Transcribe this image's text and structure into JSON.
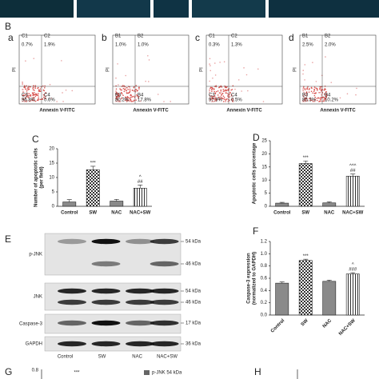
{
  "letters": {
    "B": "B",
    "C": "C",
    "D": "D",
    "E": "E",
    "F": "F",
    "G": "G",
    "H": "H"
  },
  "flow": {
    "x_label": "Annexin V-FITC",
    "y_label": "PI",
    "panels": [
      {
        "letter": "a",
        "quadrants": [
          "C1",
          "C2",
          "C3",
          "C4"
        ],
        "percents": [
          "0.7%",
          "1.9%",
          "96.8%",
          "0.6%"
        ]
      },
      {
        "letter": "b",
        "quadrants": [
          "B1",
          "B2",
          "B3",
          "B4"
        ],
        "percents": [
          "1.0%",
          "1.0%",
          "80.2%",
          "17.8%"
        ]
      },
      {
        "letter": "c",
        "quadrants": [
          "C1",
          "C2",
          "C3",
          "C4"
        ],
        "percents": [
          "0.3%",
          "1.3%",
          "97.9%",
          "0.5%"
        ]
      },
      {
        "letter": "d",
        "quadrants": [
          "B1",
          "B2",
          "B3",
          "B4"
        ],
        "percents": [
          "2.5%",
          "2.0%",
          "85.3%",
          "10.2%"
        ]
      }
    ]
  },
  "chart_data": [
    {
      "type": "bar",
      "y_label": [
        "Number of apoptotic cells",
        "(per field)"
      ],
      "categories": [
        "Control",
        "SW",
        "NAC",
        "NAC+SW"
      ],
      "values": [
        1.5,
        12.7,
        1.8,
        6.3
      ],
      "errors": [
        0.8,
        1.2,
        0.6,
        1.1
      ],
      "ylim": [
        0,
        20
      ],
      "yticks": [
        0,
        5,
        10,
        15,
        20
      ],
      "annotations": [
        {
          "x": "SW",
          "text": "***"
        },
        {
          "x": "NAC+SW",
          "text": "##"
        },
        {
          "x": "NAC+SW",
          "text": "^"
        }
      ]
    },
    {
      "type": "bar",
      "y_label": [
        "Apoptotic cells percentage"
      ],
      "categories": [
        "Control",
        "SW",
        "NAC",
        "NAC+SW"
      ],
      "values": [
        1.2,
        16.3,
        1.3,
        11.5
      ],
      "errors": [
        0.3,
        1.0,
        0.4,
        0.8
      ],
      "ylim": [
        0,
        25
      ],
      "yticks": [
        0,
        5,
        10,
        15,
        20,
        25
      ],
      "annotations": [
        {
          "x": "SW",
          "text": "***"
        },
        {
          "x": "NAC+SW",
          "text": "##"
        },
        {
          "x": "NAC+SW",
          "text": "^^^"
        }
      ]
    },
    {
      "type": "bar",
      "y_label": [
        "Caspase-3 expression",
        "(normalized to GAPDH)"
      ],
      "categories": [
        "Control",
        "SW",
        "NAC",
        "NAC+SW"
      ],
      "values": [
        0.52,
        0.89,
        0.55,
        0.67
      ],
      "errors": [
        0.02,
        0.02,
        0.02,
        0.02
      ],
      "ylim": [
        0,
        1.2
      ],
      "yticks": [
        {
          "value": 0,
          "label": "0.0"
        },
        0.2,
        0.4,
        0.6,
        0.8,
        {
          "value": 1,
          "label": "1.0"
        },
        1.2
      ],
      "annotations": [
        {
          "x": "SW",
          "text": "***"
        },
        {
          "x": "NAC+SW",
          "text": "###"
        },
        {
          "x": "NAC+SW",
          "text": "^"
        }
      ]
    }
  ],
  "blot": {
    "rows": [
      "p-JNK",
      "JNK",
      "Caspase-3",
      "GAPDH"
    ],
    "markers": [
      "54 kDa",
      "46 kDa",
      "54 kDa",
      "46 kDa",
      "17 kDa",
      "36 kDa"
    ],
    "lanes": [
      "Control",
      "SW",
      "NAC",
      "NAC+SW"
    ]
  },
  "panel_g": {
    "ytick": "0.8",
    "stars": "***",
    "legend": "p-JNK 54 kDa"
  }
}
